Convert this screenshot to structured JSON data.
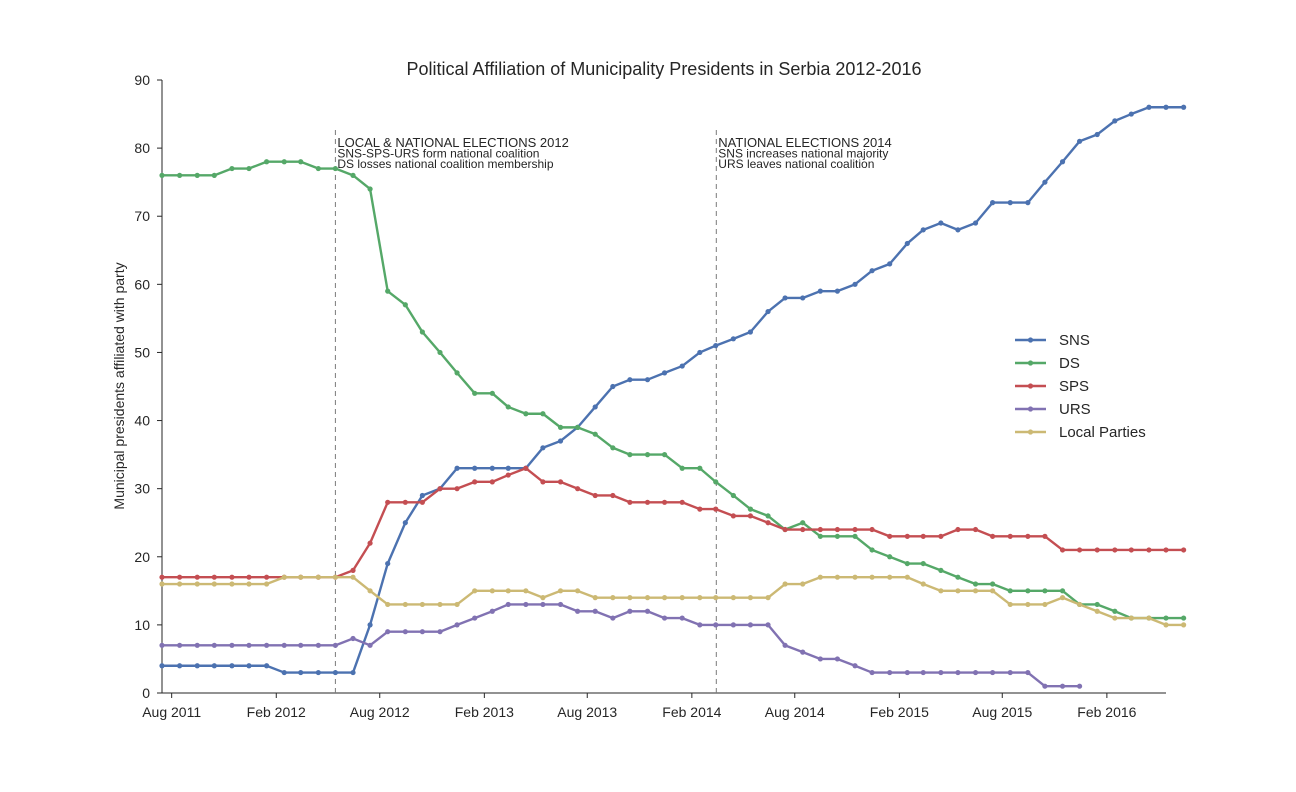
{
  "chart_data": {
    "type": "line",
    "title": "Political Affiliation of Municipality Presidents in Serbia 2012-2016",
    "xlabel": "",
    "ylabel": "Municipal presidents affiliated with party",
    "ylim": [
      0,
      90
    ],
    "xlim": [
      "2011-07-15",
      "2016-05-15"
    ],
    "grid": false,
    "legend_position": "right",
    "yticks": [
      0,
      10,
      20,
      30,
      40,
      50,
      60,
      70,
      80,
      90
    ],
    "xticks": [
      {
        "label": "Aug 2011",
        "date": "2011-08-01"
      },
      {
        "label": "Feb 2012",
        "date": "2012-02-01"
      },
      {
        "label": "Aug 2012",
        "date": "2012-08-01"
      },
      {
        "label": "Feb 2013",
        "date": "2013-02-01"
      },
      {
        "label": "Aug 2013",
        "date": "2013-08-01"
      },
      {
        "label": "Feb 2014",
        "date": "2014-02-01"
      },
      {
        "label": "Aug 2014",
        "date": "2014-08-01"
      },
      {
        "label": "Feb 2015",
        "date": "2015-02-01"
      },
      {
        "label": "Aug 2015",
        "date": "2015-08-01"
      },
      {
        "label": "Feb 2016",
        "date": "2016-02-01"
      }
    ],
    "x_start": "2011-07-15",
    "x_step_months": 1,
    "series": [
      {
        "name": "SNS",
        "color": "#4c72b0",
        "values": [
          4,
          4,
          4,
          4,
          4,
          4,
          4,
          3,
          3,
          3,
          3,
          3,
          10,
          19,
          25,
          29,
          30,
          33,
          33,
          33,
          33,
          33,
          36,
          37,
          39,
          42,
          45,
          46,
          46,
          47,
          48,
          50,
          51,
          52,
          53,
          56,
          58,
          58,
          59,
          59,
          60,
          62,
          63,
          66,
          68,
          69,
          68,
          69,
          72,
          72,
          72,
          75,
          78,
          81,
          82,
          84,
          85,
          86,
          86,
          86
        ]
      },
      {
        "name": "DS",
        "color": "#55a868",
        "values": [
          76,
          76,
          76,
          76,
          77,
          77,
          78,
          78,
          78,
          77,
          77,
          76,
          74,
          59,
          57,
          53,
          50,
          47,
          44,
          44,
          42,
          41,
          41,
          39,
          39,
          38,
          36,
          35,
          35,
          35,
          33,
          33,
          31,
          29,
          27,
          26,
          24,
          25,
          23,
          23,
          23,
          21,
          20,
          19,
          19,
          18,
          17,
          16,
          16,
          15,
          15,
          15,
          15,
          13,
          13,
          12,
          11,
          11,
          11,
          11
        ]
      },
      {
        "name": "SPS",
        "color": "#c44e52",
        "values": [
          17,
          17,
          17,
          17,
          17,
          17,
          17,
          17,
          17,
          17,
          17,
          18,
          22,
          28,
          28,
          28,
          30,
          30,
          31,
          31,
          32,
          33,
          31,
          31,
          30,
          29,
          29,
          28,
          28,
          28,
          28,
          27,
          27,
          26,
          26,
          25,
          24,
          24,
          24,
          24,
          24,
          24,
          23,
          23,
          23,
          23,
          24,
          24,
          23,
          23,
          23,
          23,
          21,
          21,
          21,
          21,
          21,
          21,
          21,
          21
        ]
      },
      {
        "name": "URS",
        "color": "#8172b2",
        "values": [
          7,
          7,
          7,
          7,
          7,
          7,
          7,
          7,
          7,
          7,
          7,
          8,
          7,
          9,
          9,
          9,
          9,
          10,
          11,
          12,
          13,
          13,
          13,
          13,
          12,
          12,
          11,
          12,
          12,
          11,
          11,
          10,
          10,
          10,
          10,
          10,
          7,
          6,
          5,
          5,
          4,
          3,
          3,
          3,
          3,
          3,
          3,
          3,
          3,
          3,
          3,
          1,
          1,
          1,
          null,
          null,
          null,
          null,
          null,
          null
        ]
      },
      {
        "name": "Local Parties",
        "color": "#ccb974",
        "values": [
          16,
          16,
          16,
          16,
          16,
          16,
          16,
          17,
          17,
          17,
          17,
          17,
          15,
          13,
          13,
          13,
          13,
          13,
          15,
          15,
          15,
          15,
          14,
          15,
          15,
          14,
          14,
          14,
          14,
          14,
          14,
          14,
          14,
          14,
          14,
          14,
          16,
          16,
          17,
          17,
          17,
          17,
          17,
          17,
          16,
          15,
          15,
          15,
          15,
          13,
          13,
          13,
          14,
          13,
          12,
          11,
          11,
          11,
          10,
          10
        ]
      }
    ],
    "annotations": [
      {
        "date": "2012-05-15",
        "lines": [
          "LOCAL & NATIONAL ELECTIONS 2012",
          "SNS-SPS-URS form national coalition",
          "DS losses national coalition membership"
        ]
      },
      {
        "date": "2014-03-16",
        "lines": [
          "NATIONAL ELECTIONS 2014",
          "SNS increases national majority",
          "URS leaves national coalition"
        ]
      }
    ]
  }
}
